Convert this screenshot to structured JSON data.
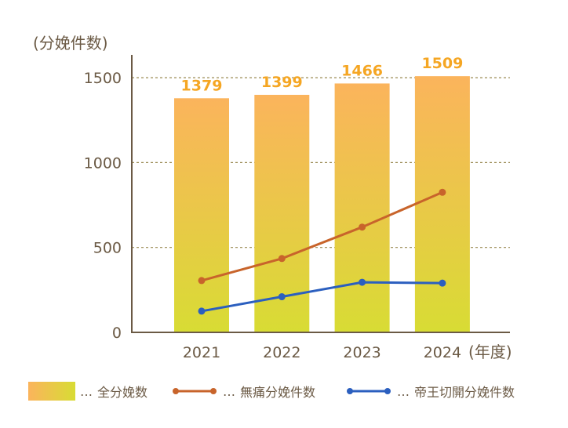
{
  "chart_data": {
    "type": "bar",
    "categories": [
      "2021",
      "2022",
      "2023",
      "2024"
    ],
    "y_unit_label": "(分娩件数)",
    "x_unit_label": "(年度)",
    "ylim": [
      0,
      1500
    ],
    "yticks": [
      0,
      500,
      1000,
      1500
    ],
    "grid": true,
    "legend_position": "bottom",
    "series": [
      {
        "name": "全分娩数",
        "type": "bar",
        "values": [
          1379,
          1399,
          1466,
          1509
        ],
        "labels_shown": true
      },
      {
        "name": "無痛分娩件数",
        "type": "line",
        "values": [
          305,
          435,
          620,
          825
        ],
        "color": "#c8642b"
      },
      {
        "name": "帝王切開分娩件数",
        "type": "line",
        "values": [
          125,
          210,
          295,
          290
        ],
        "color": "#2b5fbf"
      }
    ],
    "bar_gradient": {
      "top": "#fbb45c",
      "bottom": "#d8dc34"
    },
    "gridline_color": "#9a8a52"
  },
  "legend": {
    "prefix": "…",
    "items": [
      "全分娩数",
      "無痛分娩件数",
      "帝王切開分娩件数"
    ]
  }
}
